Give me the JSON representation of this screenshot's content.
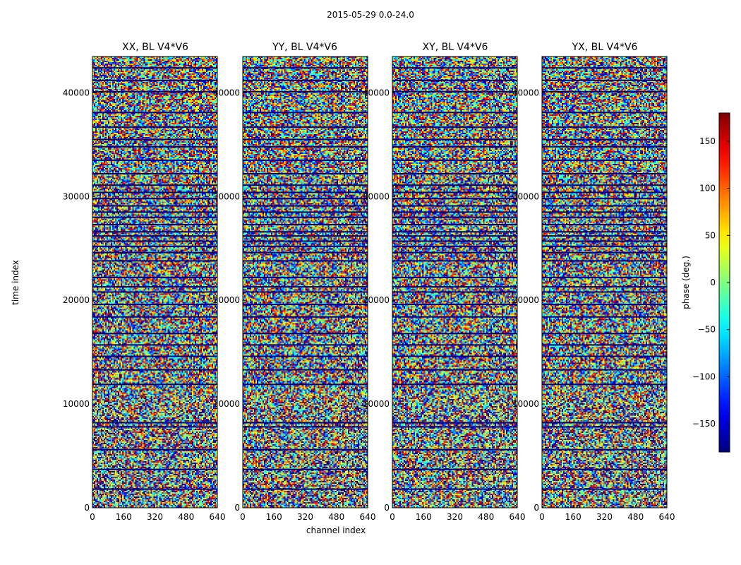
{
  "chart_data": {
    "type": "heatmap",
    "title": "2015-05-29 0.0-24.0",
    "ylabel": "time index",
    "xlabel": "channel index",
    "panels": [
      {
        "title": "XX, BL V4*V6"
      },
      {
        "title": "YY, BL V4*V6"
      },
      {
        "title": "XY, BL V4*V6"
      },
      {
        "title": "YX, BL V4*V6"
      }
    ],
    "xlim": [
      0,
      640
    ],
    "ylim": [
      0,
      43500
    ],
    "x_ticks": [
      0,
      160,
      320,
      480,
      640
    ],
    "y_ticks": [
      0,
      10000,
      20000,
      30000,
      40000
    ],
    "colorbar": {
      "label": "phase (deg.)",
      "range": [
        -180,
        180
      ],
      "ticks": [
        150,
        100,
        50,
        0,
        -50,
        -100,
        -150
      ],
      "tick_labels": [
        "150",
        "100",
        "50",
        "0",
        "−50",
        "−100",
        "−150"
      ],
      "colormap": "jet"
    },
    "flagged_rows": [
      1800,
      3700,
      5600,
      7800,
      8200,
      11900,
      13300,
      14600,
      15700,
      16800,
      18400,
      19600,
      20800,
      21300,
      22200,
      23800,
      24600,
      25200,
      25700,
      26200,
      26600,
      27300,
      28000,
      28500,
      29100,
      29800,
      30400,
      31100,
      32200,
      33500,
      34800,
      35500,
      36700,
      38100,
      40100,
      41200,
      42400
    ]
  }
}
